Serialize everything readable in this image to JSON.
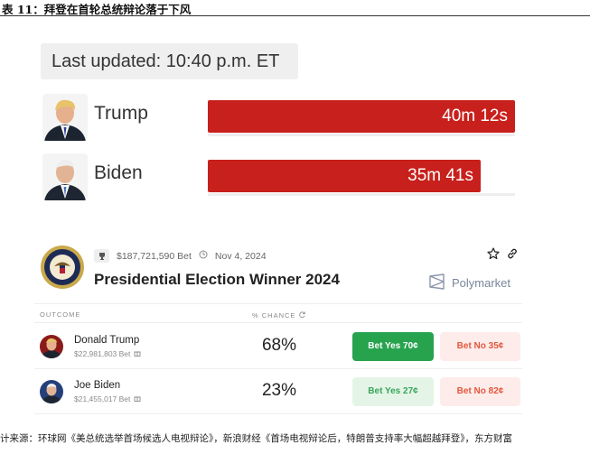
{
  "figure": {
    "title": "表 11：拜登在首轮总统辩论落于下风",
    "source": "计来源：环球网《美总统选举首场候选人电视辩论》，新浪财经《首场电视辩论后，特朗普支持率大幅超越拜登》，东方财富"
  },
  "speaking_time": {
    "last_updated": "Last updated: 10:40 p.m. ET",
    "rows": [
      {
        "name": "Trump",
        "time": "40m 12s",
        "seconds": 2412
      },
      {
        "name": "Biden",
        "time": "35m 41s",
        "seconds": 2141
      }
    ],
    "bar_color": "#c8201c"
  },
  "polymarket": {
    "volume": "$187,721,590 Bet",
    "date": "Nov 4, 2024",
    "title": "Presidential Election Winner 2024",
    "brand": "Polymarket",
    "headers": {
      "outcome": "OUTCOME",
      "chance": "% CHANCE"
    },
    "outcomes": [
      {
        "name": "Donald Trump",
        "volume": "$22,981,803 Bet",
        "chance": "68%",
        "yes": "Bet Yes 70¢",
        "no": "Bet No 35¢"
      },
      {
        "name": "Joe Biden",
        "volume": "$21,455,017 Bet",
        "chance": "23%",
        "yes": "Bet Yes 27¢",
        "no": "Bet No 82¢"
      }
    ],
    "colors": {
      "yes_strong": "#27a34e",
      "yes_light": "#e4f5e7",
      "no": "#fdecea",
      "no_text": "#e4573d"
    }
  }
}
